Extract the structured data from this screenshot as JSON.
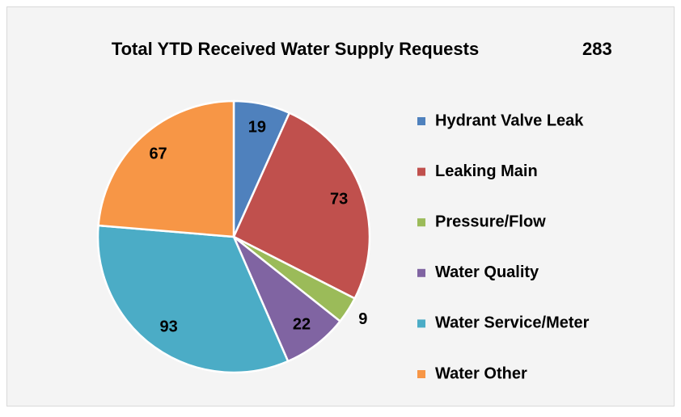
{
  "chart_data": {
    "type": "pie",
    "title": "Total YTD Received Water Supply Requests",
    "total": 283,
    "categories": [
      "Hydrant Valve Leak",
      "Leaking Main",
      "Pressure/Flow",
      "Water Quality",
      "Water Service/Meter",
      "Water Other"
    ],
    "values": [
      19,
      73,
      9,
      22,
      93,
      67
    ],
    "colors": [
      "#4f81bd",
      "#c0504d",
      "#9bbb59",
      "#8064a2",
      "#4bacc6",
      "#f79646"
    ],
    "legend": "right"
  }
}
